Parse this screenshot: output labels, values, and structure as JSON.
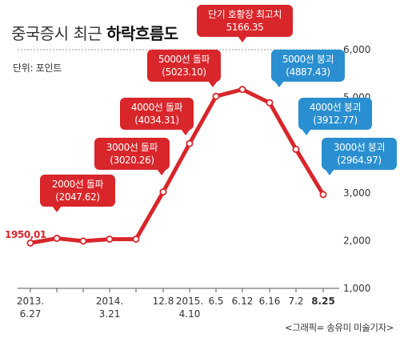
{
  "header": {
    "title_prefix": "중국증시 최근 ",
    "title_bold": "하락흐름도",
    "unit": "단위: 포인트",
    "credit": "<그래픽= 송유미 미술기자>"
  },
  "chart_data": {
    "type": "line",
    "title": "중국증시 최근 하락흐름도",
    "ylabel": "단위: 포인트",
    "xlabel": "",
    "ylim": [
      1000,
      6000
    ],
    "y_ticks": [
      "1,000",
      "2,000",
      "3,000",
      "4,000",
      "5,000",
      "6,000"
    ],
    "y_tick_values": [
      1000,
      2000,
      3000,
      4000,
      5000,
      6000
    ],
    "x_tick_labels": [
      {
        "line1": "2013.",
        "line2": "6.27",
        "index": 0
      },
      {
        "line1": "2014.",
        "line2": "3.21",
        "index": 3
      },
      {
        "line1": "12.8",
        "line2": "",
        "index": 5
      },
      {
        "line1": "2015.",
        "line2": "4.10",
        "index": 6
      },
      {
        "line1": "6.5",
        "line2": "",
        "index": 7
      },
      {
        "line1": "6.12",
        "line2": "",
        "index": 8
      },
      {
        "line1": "6.16",
        "line2": "",
        "index": 9
      },
      {
        "line1": "7.2",
        "line2": "",
        "index": 10
      },
      {
        "line1": "8.25",
        "line2": "",
        "index": 11,
        "bold": true
      }
    ],
    "values": [
      1950.01,
      2047.62,
      1990,
      2030,
      2030,
      3020.26,
      4034.31,
      5023.1,
      5166.35,
      4887.43,
      3912.77,
      2964.97
    ],
    "line_color": "#d8262b",
    "start_label": "1950,01",
    "callouts": [
      {
        "index": 1,
        "line1": "2000선 돌파",
        "line2": "(2047.62)",
        "color": "#d8262b",
        "side": "above"
      },
      {
        "index": 5,
        "line1": "3000선 돌파",
        "line2": "(3020.26)",
        "color": "#d8262b",
        "side": "above"
      },
      {
        "index": 6,
        "line1": "4000선 돌파",
        "line2": "(4034.31)",
        "color": "#d8262b",
        "side": "above"
      },
      {
        "index": 7,
        "line1": "5000선 돌파",
        "line2": "(5023.10)",
        "color": "#d8262b",
        "side": "above"
      },
      {
        "index": 8,
        "line1": "단기 호황장 최고치",
        "line2": "5166.35",
        "color": "#d8262b",
        "side": "above"
      },
      {
        "index": 9,
        "line1": "5000선 붕괴",
        "line2": "(4887.43)",
        "color": "#2a8fd0",
        "side": "above"
      },
      {
        "index": 10,
        "line1": "4000선 붕괴",
        "line2": "(3912.77)",
        "color": "#2a8fd0",
        "side": "above"
      },
      {
        "index": 11,
        "line1": "3000선 붕괴",
        "line2": "(2964.97)",
        "color": "#2a8fd0",
        "side": "above"
      }
    ]
  }
}
